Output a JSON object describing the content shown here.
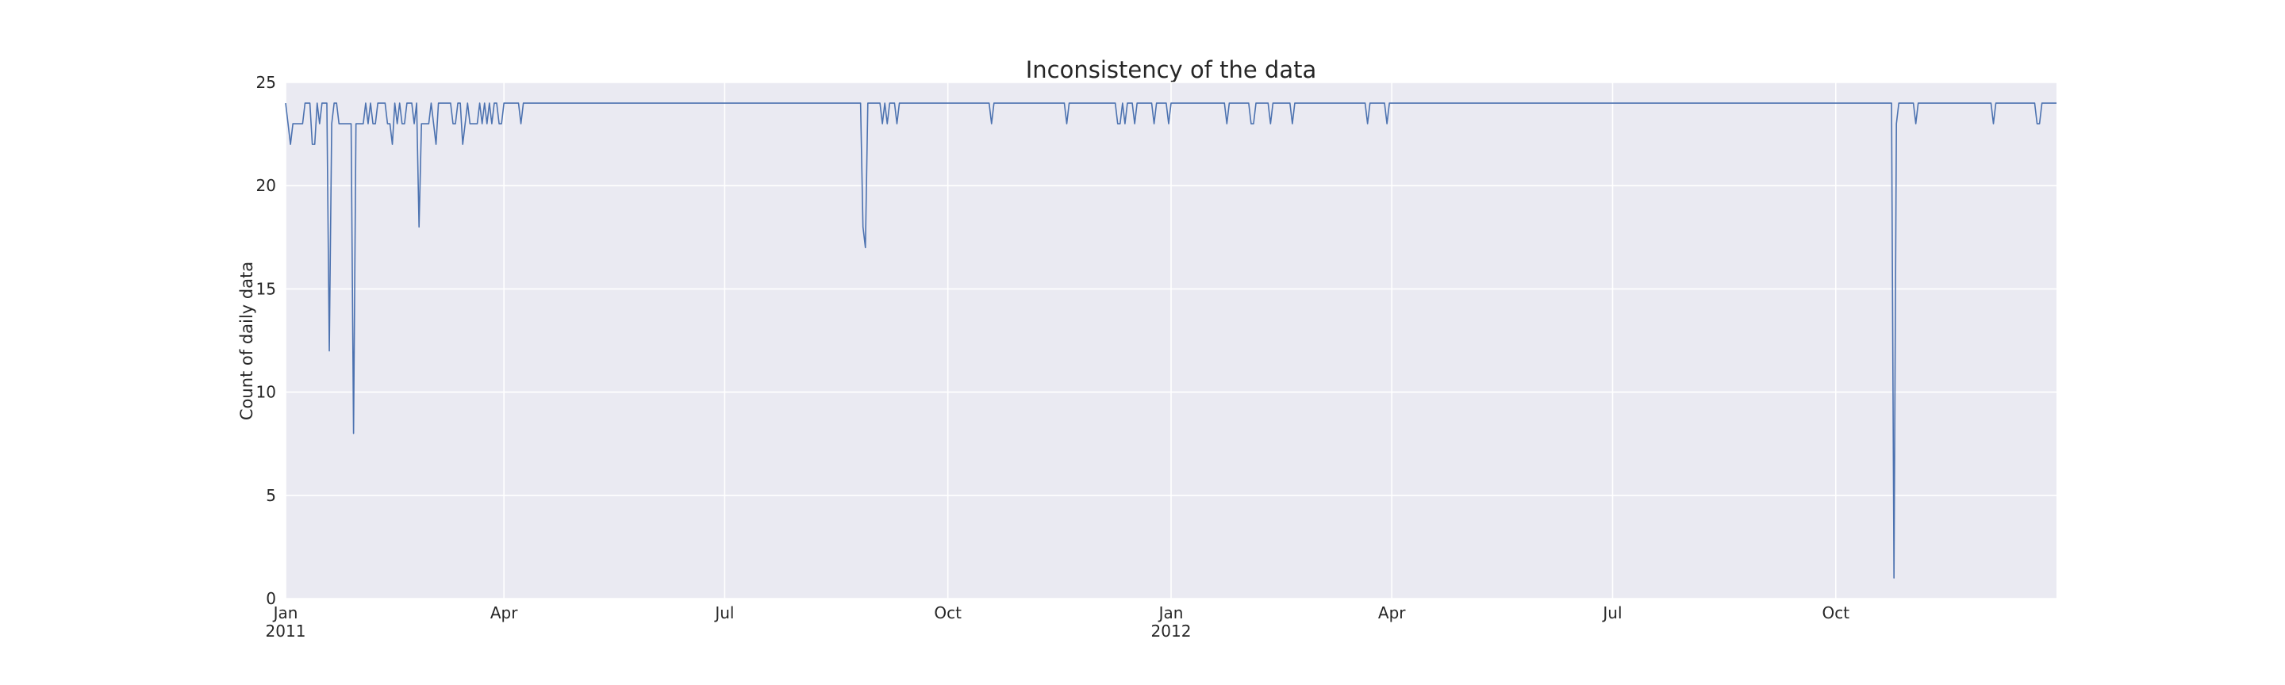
{
  "chart_data": {
    "type": "line",
    "title": "Inconsistency of the data",
    "xlabel": "",
    "ylabel": "Count of daily data",
    "ylim": [
      0,
      25
    ],
    "xlim": [
      "2011-01-01",
      "2012-12-31"
    ],
    "y_ticks": [
      0,
      5,
      10,
      15,
      20,
      25
    ],
    "x_ticks": [
      {
        "date": "2011-01-01",
        "label": "Jan",
        "sublabel": "2011"
      },
      {
        "date": "2011-04-01",
        "label": "Apr",
        "sublabel": ""
      },
      {
        "date": "2011-07-01",
        "label": "Jul",
        "sublabel": ""
      },
      {
        "date": "2011-10-01",
        "label": "Oct",
        "sublabel": ""
      },
      {
        "date": "2012-01-01",
        "label": "Jan",
        "sublabel": "2012"
      },
      {
        "date": "2012-04-01",
        "label": "Apr",
        "sublabel": ""
      },
      {
        "date": "2012-07-01",
        "label": "Jul",
        "sublabel": ""
      },
      {
        "date": "2012-10-01",
        "label": "Oct",
        "sublabel": ""
      }
    ],
    "grid": true,
    "colors": {
      "line": "#4c72b0",
      "plot_bg": "#eaeaf2",
      "grid": "#ffffff",
      "text": "#262626"
    },
    "series": [
      {
        "name": "",
        "baseline": 24,
        "points": [
          [
            "2011-01-01",
            24
          ],
          [
            "2011-01-02",
            23
          ],
          [
            "2011-01-03",
            22
          ],
          [
            "2011-01-04",
            23
          ],
          [
            "2011-01-05",
            23
          ],
          [
            "2011-01-06",
            23
          ],
          [
            "2011-01-07",
            23
          ],
          [
            "2011-01-08",
            23
          ],
          [
            "2011-01-09",
            24
          ],
          [
            "2011-01-10",
            24
          ],
          [
            "2011-01-11",
            24
          ],
          [
            "2011-01-12",
            22
          ],
          [
            "2011-01-13",
            22
          ],
          [
            "2011-01-14",
            24
          ],
          [
            "2011-01-15",
            23
          ],
          [
            "2011-01-16",
            24
          ],
          [
            "2011-01-17",
            24
          ],
          [
            "2011-01-18",
            24
          ],
          [
            "2011-01-19",
            12
          ],
          [
            "2011-01-20",
            23
          ],
          [
            "2011-01-21",
            24
          ],
          [
            "2011-01-22",
            24
          ],
          [
            "2011-01-23",
            23
          ],
          [
            "2011-01-24",
            23
          ],
          [
            "2011-01-25",
            23
          ],
          [
            "2011-01-26",
            23
          ],
          [
            "2011-01-27",
            23
          ],
          [
            "2011-01-28",
            23
          ],
          [
            "2011-01-29",
            8
          ],
          [
            "2011-01-30",
            23
          ],
          [
            "2011-01-31",
            23
          ],
          [
            "2011-02-01",
            23
          ],
          [
            "2011-02-02",
            23
          ],
          [
            "2011-02-03",
            24
          ],
          [
            "2011-02-04",
            23
          ],
          [
            "2011-02-05",
            24
          ],
          [
            "2011-02-06",
            23
          ],
          [
            "2011-02-07",
            23
          ],
          [
            "2011-02-08",
            24
          ],
          [
            "2011-02-09",
            24
          ],
          [
            "2011-02-10",
            24
          ],
          [
            "2011-02-11",
            24
          ],
          [
            "2011-02-12",
            23
          ],
          [
            "2011-02-13",
            23
          ],
          [
            "2011-02-14",
            22
          ],
          [
            "2011-02-15",
            24
          ],
          [
            "2011-02-16",
            23
          ],
          [
            "2011-02-17",
            24
          ],
          [
            "2011-02-18",
            23
          ],
          [
            "2011-02-19",
            23
          ],
          [
            "2011-02-20",
            24
          ],
          [
            "2011-02-21",
            24
          ],
          [
            "2011-02-22",
            24
          ],
          [
            "2011-02-23",
            23
          ],
          [
            "2011-02-24",
            24
          ],
          [
            "2011-02-25",
            18
          ],
          [
            "2011-02-26",
            23
          ],
          [
            "2011-02-27",
            23
          ],
          [
            "2011-02-28",
            23
          ],
          [
            "2011-03-01",
            23
          ],
          [
            "2011-03-02",
            24
          ],
          [
            "2011-03-03",
            23
          ],
          [
            "2011-03-04",
            22
          ],
          [
            "2011-03-05",
            24
          ],
          [
            "2011-03-06",
            24
          ],
          [
            "2011-03-07",
            24
          ],
          [
            "2011-03-08",
            24
          ],
          [
            "2011-03-09",
            24
          ],
          [
            "2011-03-10",
            24
          ],
          [
            "2011-03-11",
            23
          ],
          [
            "2011-03-12",
            23
          ],
          [
            "2011-03-13",
            24
          ],
          [
            "2011-03-14",
            24
          ],
          [
            "2011-03-15",
            22
          ],
          [
            "2011-03-16",
            23
          ],
          [
            "2011-03-17",
            24
          ],
          [
            "2011-03-18",
            23
          ],
          [
            "2011-03-19",
            23
          ],
          [
            "2011-03-20",
            23
          ],
          [
            "2011-03-21",
            23
          ],
          [
            "2011-03-22",
            24
          ],
          [
            "2011-03-23",
            23
          ],
          [
            "2011-03-24",
            24
          ],
          [
            "2011-03-25",
            23
          ],
          [
            "2011-03-26",
            24
          ],
          [
            "2011-03-27",
            23
          ],
          [
            "2011-03-28",
            24
          ],
          [
            "2011-03-29",
            24
          ],
          [
            "2011-03-30",
            23
          ],
          [
            "2011-03-31",
            23
          ],
          [
            "2011-04-01",
            24
          ],
          [
            "2011-04-02",
            24
          ],
          [
            "2011-04-03",
            24
          ],
          [
            "2011-04-04",
            24
          ],
          [
            "2011-04-07",
            24
          ],
          [
            "2011-04-08",
            23
          ],
          [
            "2011-04-09",
            24
          ],
          [
            "2011-08-26",
            24
          ],
          [
            "2011-08-27",
            18
          ],
          [
            "2011-08-28",
            17
          ],
          [
            "2011-08-29",
            24
          ],
          [
            "2011-09-03",
            24
          ],
          [
            "2011-09-04",
            23
          ],
          [
            "2011-09-05",
            24
          ],
          [
            "2011-09-06",
            23
          ],
          [
            "2011-09-07",
            24
          ],
          [
            "2011-09-08",
            24
          ],
          [
            "2011-09-09",
            24
          ],
          [
            "2011-09-10",
            23
          ],
          [
            "2011-09-11",
            24
          ],
          [
            "2011-10-18",
            24
          ],
          [
            "2011-10-19",
            23
          ],
          [
            "2011-10-20",
            24
          ],
          [
            "2011-11-18",
            24
          ],
          [
            "2011-11-19",
            23
          ],
          [
            "2011-11-20",
            24
          ],
          [
            "2011-12-09",
            24
          ],
          [
            "2011-12-10",
            23
          ],
          [
            "2011-12-11",
            23
          ],
          [
            "2011-12-12",
            24
          ],
          [
            "2011-12-13",
            23
          ],
          [
            "2011-12-14",
            24
          ],
          [
            "2011-12-15",
            24
          ],
          [
            "2011-12-16",
            24
          ],
          [
            "2011-12-17",
            23
          ],
          [
            "2011-12-18",
            24
          ],
          [
            "2011-12-24",
            24
          ],
          [
            "2011-12-25",
            23
          ],
          [
            "2011-12-26",
            24
          ],
          [
            "2011-12-30",
            24
          ],
          [
            "2011-12-31",
            23
          ],
          [
            "2012-01-01",
            24
          ],
          [
            "2012-01-23",
            24
          ],
          [
            "2012-01-24",
            23
          ],
          [
            "2012-01-25",
            24
          ],
          [
            "2012-02-02",
            24
          ],
          [
            "2012-02-03",
            23
          ],
          [
            "2012-02-04",
            23
          ],
          [
            "2012-02-05",
            24
          ],
          [
            "2012-02-10",
            24
          ],
          [
            "2012-02-11",
            23
          ],
          [
            "2012-02-12",
            24
          ],
          [
            "2012-02-19",
            24
          ],
          [
            "2012-02-20",
            23
          ],
          [
            "2012-02-21",
            24
          ],
          [
            "2012-03-21",
            24
          ],
          [
            "2012-03-22",
            23
          ],
          [
            "2012-03-23",
            24
          ],
          [
            "2012-03-29",
            24
          ],
          [
            "2012-03-30",
            23
          ],
          [
            "2012-03-31",
            24
          ],
          [
            "2012-10-24",
            24
          ],
          [
            "2012-10-25",
            1
          ],
          [
            "2012-10-26",
            23
          ],
          [
            "2012-10-27",
            24
          ],
          [
            "2012-11-02",
            24
          ],
          [
            "2012-11-03",
            23
          ],
          [
            "2012-11-04",
            24
          ],
          [
            "2012-12-04",
            24
          ],
          [
            "2012-12-05",
            23
          ],
          [
            "2012-12-06",
            24
          ],
          [
            "2012-12-22",
            24
          ],
          [
            "2012-12-23",
            23
          ],
          [
            "2012-12-24",
            23
          ],
          [
            "2012-12-25",
            24
          ],
          [
            "2012-12-31",
            24
          ]
        ]
      }
    ]
  }
}
